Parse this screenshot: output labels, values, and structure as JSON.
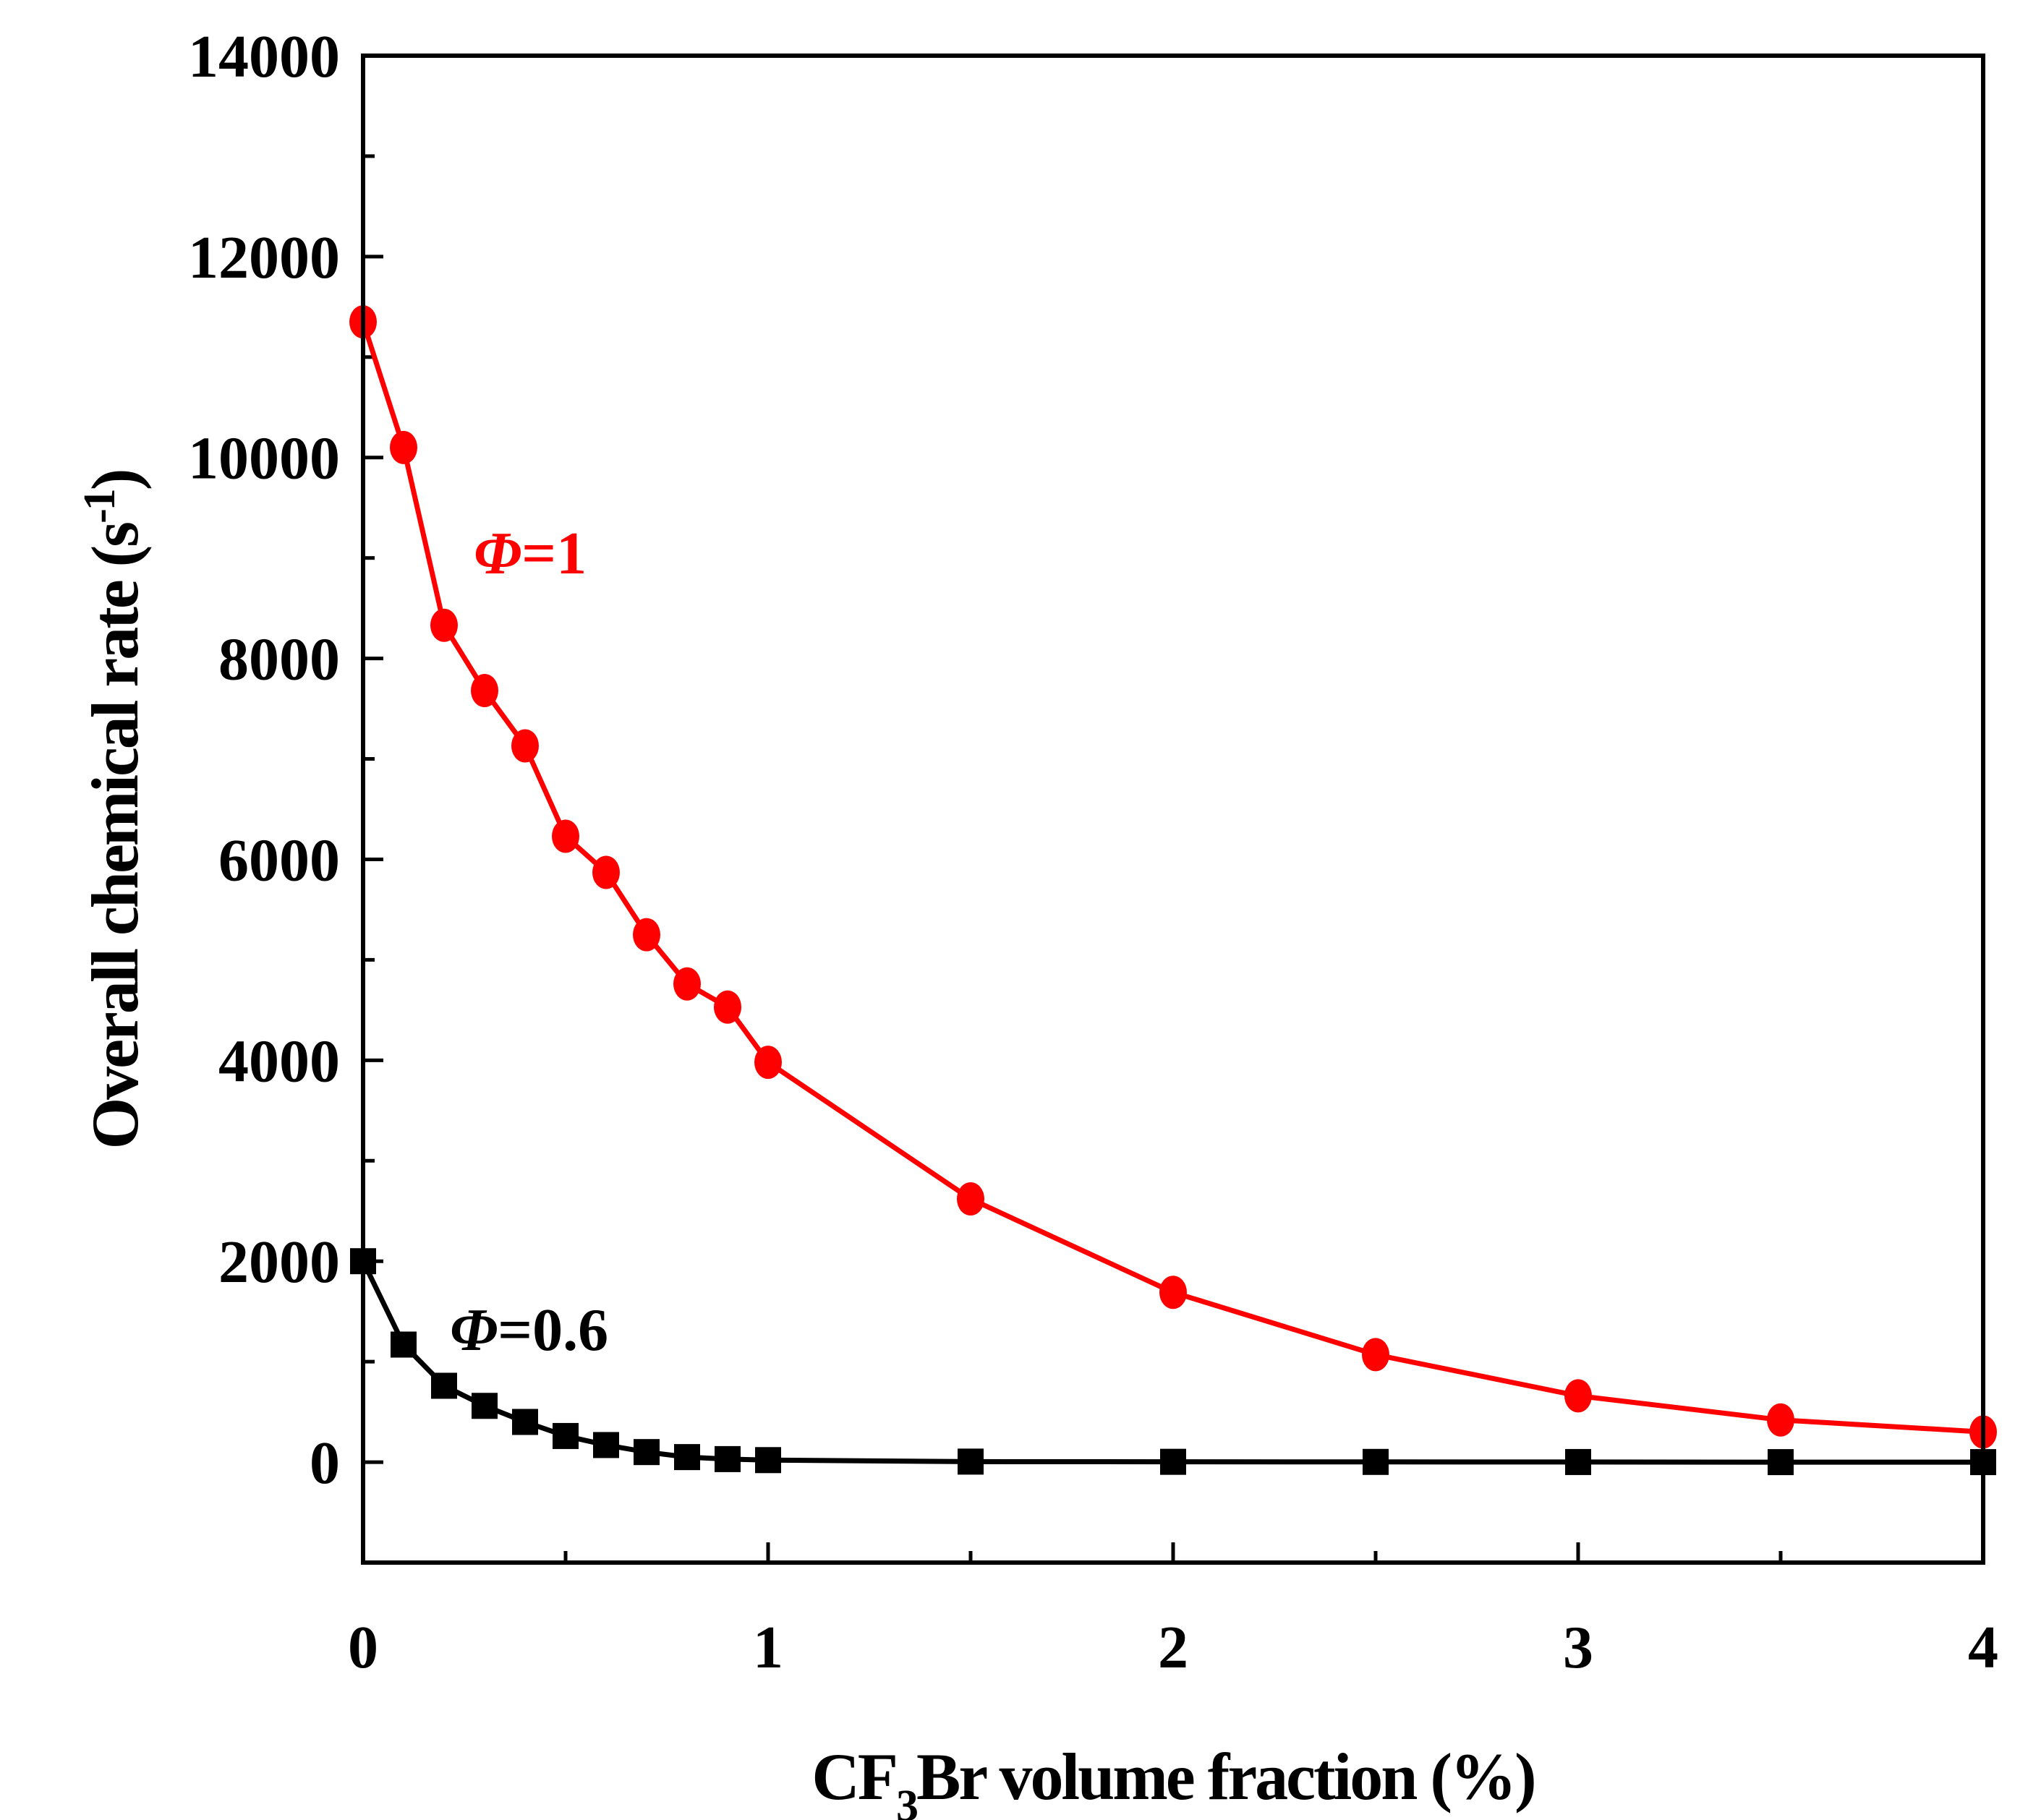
{
  "chart_data": {
    "type": "line",
    "title": "",
    "xlabel": {
      "prefix": "CF",
      "subscript": "3",
      "suffix": "Br volume fraction (%)"
    },
    "ylabel": {
      "main": "Overall chemical rate (s",
      "superscript": "-1",
      "close": ")"
    },
    "xlim": [
      0,
      4
    ],
    "ylim": [
      -1000,
      14000
    ],
    "x_ticks": [
      0,
      1,
      2,
      3,
      4
    ],
    "x_tick_labels": [
      "0",
      "1",
      "2",
      "3",
      "4"
    ],
    "y_ticks": [
      0,
      2000,
      4000,
      6000,
      8000,
      10000,
      12000,
      14000
    ],
    "y_tick_labels": [
      "0",
      "2000",
      "4000",
      "6000",
      "8000",
      "10000",
      "12000",
      "14000"
    ],
    "grid": false,
    "series": [
      {
        "name": "Φ=1",
        "color": "#ff0000",
        "marker": "circle",
        "x": [
          0,
          0.1,
          0.2,
          0.3,
          0.4,
          0.5,
          0.6,
          0.7,
          0.8,
          0.9,
          1.0,
          1.5,
          2.0,
          2.5,
          3.0,
          3.5,
          4.0
        ],
        "y": [
          11350,
          10100,
          8330,
          7680,
          7130,
          6230,
          5870,
          5250,
          4760,
          4530,
          3980,
          2620,
          1690,
          1070,
          660,
          420,
          300
        ]
      },
      {
        "name": "Φ=0.6",
        "color": "#000000",
        "marker": "square",
        "x": [
          0,
          0.1,
          0.2,
          0.3,
          0.4,
          0.5,
          0.6,
          0.7,
          0.8,
          0.9,
          1.0,
          1.5,
          2.0,
          2.5,
          3.0,
          3.5,
          4.0
        ],
        "y": [
          2000,
          1170,
          760,
          560,
          400,
          260,
          170,
          100,
          50,
          30,
          20,
          5,
          3,
          2,
          1,
          0,
          0
        ]
      }
    ],
    "annotations": [
      {
        "symbol": "Φ",
        "text": "=1",
        "color": "#ff0000",
        "series": "Φ=1"
      },
      {
        "symbol": "Φ",
        "text": "=0.6",
        "color": "#000000",
        "series": "Φ=0.6"
      }
    ]
  }
}
